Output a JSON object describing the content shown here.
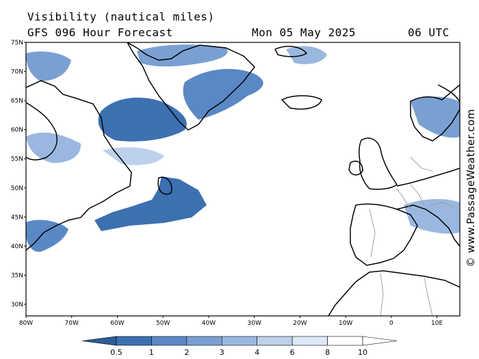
{
  "header": {
    "title": "Visibility (nautical miles)",
    "subtitle": "GFS 096 Hour Forecast",
    "date": "Mon 05 May 2025",
    "time": "06 UTC"
  },
  "watermark": "© www.PassageWeather.com",
  "map": {
    "projection": "equirectangular",
    "lon_range": [
      -80,
      15
    ],
    "lat_range": [
      28,
      75
    ],
    "lat_ticks": [
      "75N",
      "70N",
      "65N",
      "60N",
      "55N",
      "50N",
      "45N",
      "40N",
      "35N",
      "30N"
    ],
    "lon_ticks": [
      "80W",
      "70W",
      "60W",
      "50W",
      "40W",
      "30W",
      "20W",
      "10W",
      "0",
      "10E"
    ],
    "coastline_color": "#000000",
    "border_color": "#999999"
  },
  "legend": {
    "labels": [
      "0.5",
      "1",
      "2",
      "3",
      "4",
      "6",
      "8",
      "10"
    ],
    "colors": [
      "#2b5c99",
      "#3d70b0",
      "#5a88c4",
      "#7aa0d2",
      "#9ab8df",
      "#bdd1ec",
      "#dde8f6",
      "#ffffff"
    ]
  }
}
